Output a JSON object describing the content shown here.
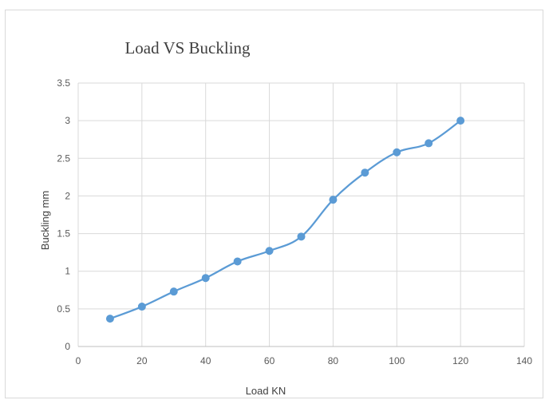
{
  "chart_data": {
    "type": "line",
    "title": "Load VS Buckling",
    "xlabel": "Load KN",
    "ylabel": "Buckling mm",
    "xlim": [
      0,
      140
    ],
    "ylim": [
      0,
      3.5
    ],
    "x_ticks": [
      "0",
      "20",
      "40",
      "60",
      "80",
      "100",
      "120",
      "140"
    ],
    "y_ticks": [
      "0",
      "0.5",
      "1",
      "1.5",
      "2",
      "2.5",
      "3",
      "3.5"
    ],
    "grid": true,
    "smooth": true,
    "series": [
      {
        "x": [
          10,
          20,
          30,
          40,
          50,
          60,
          70,
          80,
          90,
          100,
          110,
          120
        ],
        "y": [
          0.37,
          0.53,
          0.73,
          0.91,
          1.13,
          1.27,
          1.46,
          1.95,
          2.31,
          2.58,
          2.7,
          3.0
        ],
        "color": "#5b9bd5"
      }
    ]
  }
}
